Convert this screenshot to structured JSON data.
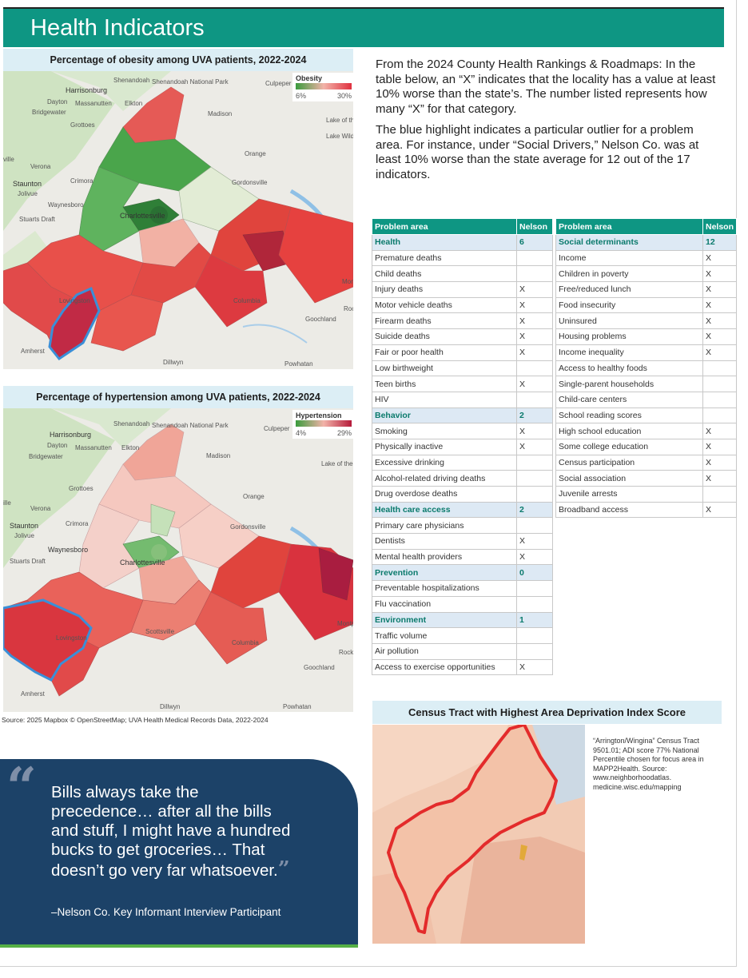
{
  "header": {
    "title": "Health Indicators"
  },
  "obesity_map": {
    "title": "Percentage of obesity among UVA patients, 2022-2024",
    "legend": {
      "title": "Obesity",
      "min": "6%",
      "max": "30%",
      "colors": [
        "#3a9b3c",
        "#f2b3a9",
        "#e0303f"
      ]
    },
    "labels": [
      "Harrisonburg",
      "Dayton",
      "Massanutten",
      "Elkton",
      "Bridgewater",
      "Shenandoah",
      "Shenandoah National Park",
      "Culpeper",
      "Madison",
      "Lake of the Woods",
      "Lake Wilderness",
      "Grottoes",
      "Orange",
      "Verona",
      "Crimora",
      "Staunton",
      "Jolivue",
      "Waynesboro",
      "Stuarts Draft",
      "Charlottesville",
      "Gordonsville",
      "Lovingston",
      "Columbia",
      "Goochland",
      "Amherst",
      "Dillwyn",
      "Powhatan",
      "Montp",
      "Rock",
      "ville"
    ]
  },
  "hypertension_map": {
    "title": "Percentage of hypertension among UVA patients, 2022-2024",
    "legend": {
      "title": "Hypertension",
      "min": "4%",
      "max": "29%",
      "colors": [
        "#3a9b3c",
        "#f2b3a9",
        "#b51a3a"
      ]
    },
    "labels": [
      "Harrisonburg",
      "Dayton",
      "Massanutten",
      "Elkton",
      "Bridgewater",
      "Shenandoah",
      "Shenandoah National Park",
      "Culpeper",
      "Madison",
      "Lake of the Woods",
      "Grottoes",
      "Orange",
      "Verona",
      "Crimora",
      "Staunton",
      "Jolivue",
      "Waynesboro",
      "Stuarts Draft",
      "Charlottesville",
      "Gordonsville",
      "Scottsville",
      "Lovingston",
      "Columbia",
      "Goochland",
      "Amherst",
      "Dillwyn",
      "Powhatan",
      "Montpe",
      "Rockv",
      "ille"
    ]
  },
  "source": "Source: 2025 Mapbox © OpenStreetMap; UVA Health Medical Records Data, 2022-2024",
  "intro": {
    "p1": "From the 2024 County Health Rankings & Roadmaps: In the table below, an “X” indicates that the locality has a value at least 10% worse than the state’s. The number listed represents how many “X” for that category.",
    "p2": "The blue highlight indicates a particular outlier for a problem area. For instance, under “Social Drivers,” Nelson Co. was at least 10% worse than the state average for 12 out of the 17 indicators."
  },
  "table_left": {
    "headers": [
      "Problem area",
      "Nelson"
    ],
    "rows": [
      {
        "label": "Health",
        "value": "6",
        "category": true
      },
      {
        "label": "Premature deaths",
        "value": ""
      },
      {
        "label": "Child deaths",
        "value": ""
      },
      {
        "label": "Injury deaths",
        "value": "X"
      },
      {
        "label": "Motor vehicle deaths",
        "value": "X"
      },
      {
        "label": "Firearm deaths",
        "value": "X"
      },
      {
        "label": "Suicide deaths",
        "value": "X"
      },
      {
        "label": "Fair or poor health",
        "value": "X"
      },
      {
        "label": "Low birthweight",
        "value": ""
      },
      {
        "label": "Teen births",
        "value": "X"
      },
      {
        "label": "HIV",
        "value": ""
      },
      {
        "label": "Behavior",
        "value": "2",
        "category": true
      },
      {
        "label": "Smoking",
        "value": "X"
      },
      {
        "label": "Physically inactive",
        "value": "X"
      },
      {
        "label": "Excessive drinking",
        "value": ""
      },
      {
        "label": "Alcohol-related driving deaths",
        "value": ""
      },
      {
        "label": "Drug overdose deaths",
        "value": ""
      },
      {
        "label": "Health care access",
        "value": "2",
        "category": true
      },
      {
        "label": "Primary care physicians",
        "value": ""
      },
      {
        "label": "Dentists",
        "value": "X"
      },
      {
        "label": "Mental health providers",
        "value": "X"
      },
      {
        "label": "Prevention",
        "value": "0",
        "category": true
      },
      {
        "label": "Preventable hospitalizations",
        "value": ""
      },
      {
        "label": "Flu vaccination",
        "value": ""
      },
      {
        "label": "Environment",
        "value": "1",
        "category": true
      },
      {
        "label": "Traffic volume",
        "value": ""
      },
      {
        "label": "Air pollution",
        "value": ""
      },
      {
        "label": "Access to exercise opportunities",
        "value": "X"
      }
    ]
  },
  "table_right": {
    "headers": [
      "Problem area",
      "Nelson"
    ],
    "rows": [
      {
        "label": "Social determinants",
        "value": "12",
        "category": true
      },
      {
        "label": "Income",
        "value": "X"
      },
      {
        "label": "Children in poverty",
        "value": "X"
      },
      {
        "label": "Free/reduced lunch",
        "value": "X"
      },
      {
        "label": "Food insecurity",
        "value": "X"
      },
      {
        "label": "Uninsured",
        "value": "X"
      },
      {
        "label": "Housing problems",
        "value": "X"
      },
      {
        "label": "Income inequality",
        "value": "X"
      },
      {
        "label": "Access to healthy foods",
        "value": ""
      },
      {
        "label": "Single-parent households",
        "value": ""
      },
      {
        "label": "Child-care centers",
        "value": ""
      },
      {
        "label": "School reading scores",
        "value": ""
      },
      {
        "label": "High school education",
        "value": "X"
      },
      {
        "label": "Some college education",
        "value": "X"
      },
      {
        "label": "Census participation",
        "value": "X"
      },
      {
        "label": "Social association",
        "value": "X"
      },
      {
        "label": "Juvenile arrests",
        "value": ""
      },
      {
        "label": "Broadband access",
        "value": "X"
      }
    ]
  },
  "adi": {
    "title": "Census Tract with Highest Area Deprivation Index Score",
    "note": "“Arrington/Wingina” Census Tract 9501.01; ADI score 77% National Percentile chosen for focus area in MAPP2Health. Source: www.neighborhoodatlas. medicine.wisc.edu/mapping"
  },
  "quote": {
    "open_mark": "“",
    "text": "Bills always take the precedence… after all the bills and stuff, I might have a hundred bucks to get groceries… That doesn’t go very far whatsoever.",
    "close_mark": "”",
    "attribution": "–Nelson Co. Key Informant Interview Participant"
  }
}
